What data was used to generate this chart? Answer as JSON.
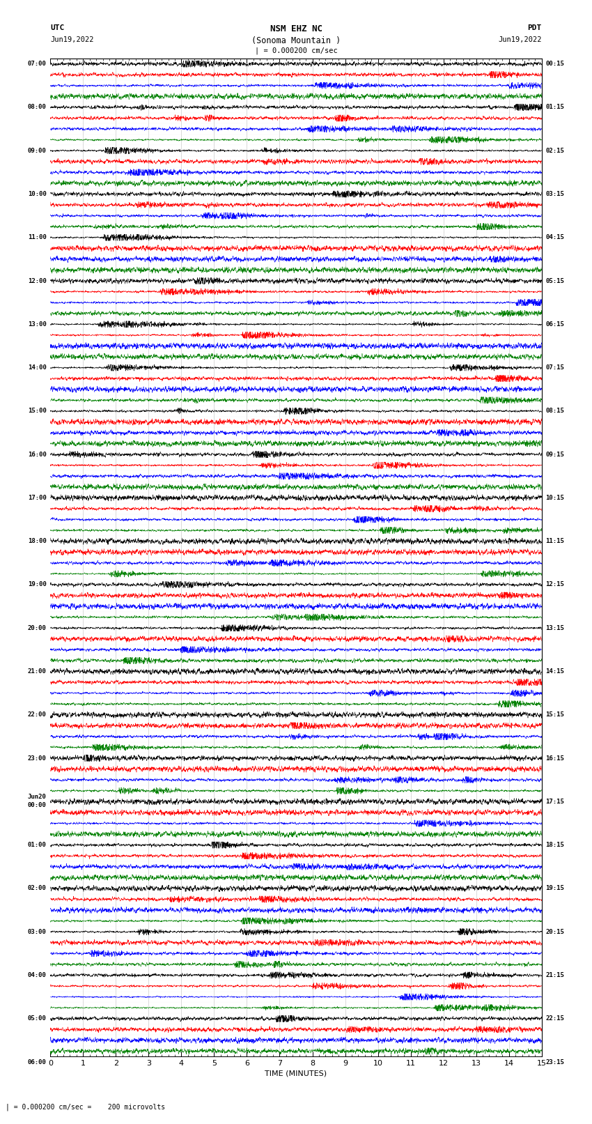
{
  "title_line1": "NSM EHZ NC",
  "title_line2": "(Sonoma Mountain )",
  "title_line3": "| = 0.000200 cm/sec",
  "label_utc": "UTC",
  "label_pdt": "PDT",
  "date_left": "Jun19,2022",
  "date_right": "Jun19,2022",
  "xlabel": "TIME (MINUTES)",
  "scale_text": "| = 0.000200 cm/sec =    200 microvolts",
  "colors": [
    "black",
    "red",
    "blue",
    "green"
  ],
  "bg_color": "white",
  "left_time_labels_utc": [
    "07:00",
    "",
    "",
    "",
    "08:00",
    "",
    "",
    "",
    "09:00",
    "",
    "",
    "",
    "10:00",
    "",
    "",
    "",
    "11:00",
    "",
    "",
    "",
    "12:00",
    "",
    "",
    "",
    "13:00",
    "",
    "",
    "",
    "14:00",
    "",
    "",
    "",
    "15:00",
    "",
    "",
    "",
    "16:00",
    "",
    "",
    "",
    "17:00",
    "",
    "",
    "",
    "18:00",
    "",
    "",
    "",
    "19:00",
    "",
    "",
    "",
    "20:00",
    "",
    "",
    "",
    "21:00",
    "",
    "",
    "",
    "22:00",
    "",
    "",
    "",
    "23:00",
    "",
    "",
    "",
    "Jun20\n00:00",
    "",
    "",
    "",
    "01:00",
    "",
    "",
    "",
    "02:00",
    "",
    "",
    "",
    "03:00",
    "",
    "",
    "",
    "04:00",
    "",
    "",
    "",
    "05:00",
    "",
    "",
    "",
    "06:00",
    "",
    ""
  ],
  "right_time_labels_pdt": [
    "00:15",
    "",
    "",
    "",
    "01:15",
    "",
    "",
    "",
    "02:15",
    "",
    "",
    "",
    "03:15",
    "",
    "",
    "",
    "04:15",
    "",
    "",
    "",
    "05:15",
    "",
    "",
    "",
    "06:15",
    "",
    "",
    "",
    "07:15",
    "",
    "",
    "",
    "08:15",
    "",
    "",
    "",
    "09:15",
    "",
    "",
    "",
    "10:15",
    "",
    "",
    "",
    "11:15",
    "",
    "",
    "",
    "12:15",
    "",
    "",
    "",
    "13:15",
    "",
    "",
    "",
    "14:15",
    "",
    "",
    "",
    "15:15",
    "",
    "",
    "",
    "16:15",
    "",
    "",
    "",
    "17:15",
    "",
    "",
    "",
    "18:15",
    "",
    "",
    "",
    "19:15",
    "",
    "",
    "",
    "20:15",
    "",
    "",
    "",
    "21:15",
    "",
    "",
    "",
    "22:15",
    "",
    "",
    "",
    "23:15",
    "",
    ""
  ],
  "n_rows": 92,
  "seed": 42
}
